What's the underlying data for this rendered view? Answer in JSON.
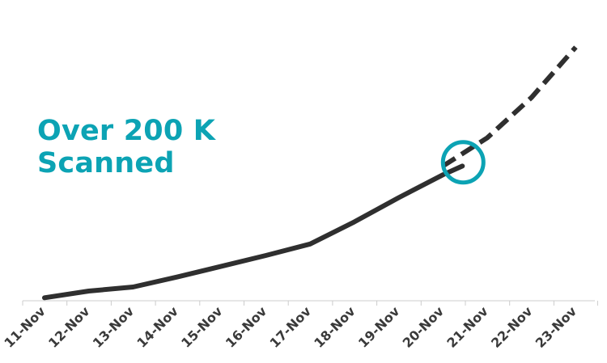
{
  "annotation": {
    "line1": "Over 200 K",
    "line2": "Scanned",
    "color": "#0ca3b4"
  },
  "chart_data": {
    "type": "line",
    "title": "",
    "xlabel": "",
    "ylabel": "",
    "categories": [
      "11-Nov",
      "12-Nov",
      "13-Nov",
      "14-Nov",
      "15-Nov",
      "16-Nov",
      "17-Nov",
      "18-Nov",
      "19-Nov",
      "20-Nov",
      "21-Nov",
      "22-Nov",
      "23-Nov"
    ],
    "series": [
      {
        "style": "solid",
        "color": "#2f2f2f",
        "points": [
          {
            "x": "11-Nov",
            "y": 2
          },
          {
            "x": "12-Nov",
            "y": 12
          },
          {
            "x": "13-Nov",
            "y": 18
          },
          {
            "x": "14-Nov",
            "y": 33
          },
          {
            "x": "15-Nov",
            "y": 49
          },
          {
            "x": "16-Nov",
            "y": 65
          },
          {
            "x": "17-Nov",
            "y": 82
          },
          {
            "x": "18-Nov",
            "y": 115
          },
          {
            "x": "19-Nov",
            "y": 151
          },
          {
            "x": "20-Nov",
            "y": 185
          },
          {
            "x": "20-Nov",
            "y": 198
          }
        ]
      },
      {
        "style": "dashed",
        "color": "#2f2f2f",
        "points": [
          {
            "x": "20-Nov",
            "y": 198
          },
          {
            "x": "21-Nov",
            "y": 240
          },
          {
            "x": "22-Nov",
            "y": 300
          },
          {
            "x": "23-Nov",
            "y": 375
          }
        ]
      }
    ],
    "highlight": {
      "x": "20-Nov",
      "y": 200,
      "color": "#0ca3b4"
    },
    "ylim": [
      0,
      385
    ],
    "grid": false,
    "legend": "none",
    "x_axis_color": "#cccccc"
  }
}
